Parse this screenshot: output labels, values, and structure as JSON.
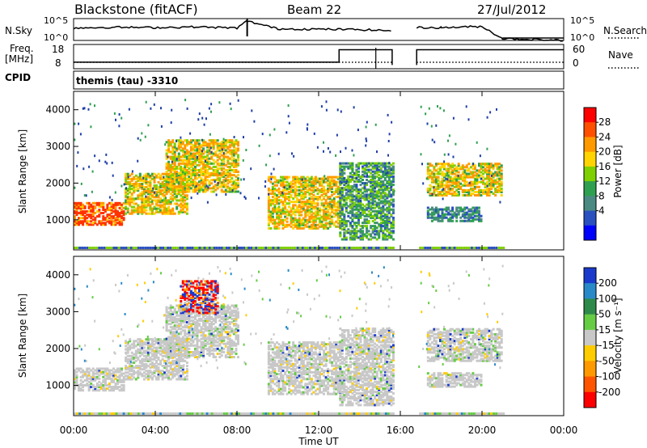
{
  "header": {
    "station": "Blackstone (fitACF)",
    "beam": "Beam 22",
    "date": "27/Jul/2012"
  },
  "noise_panel": {
    "left_label": "N.Sky",
    "right_label": "N.Search",
    "left_ticks": [
      "10^5",
      "10^0"
    ],
    "right_ticks": [
      "10^5",
      "10^0"
    ]
  },
  "freq_panel": {
    "left_label_top": "Freq.",
    "left_label_bottom": "[MHz]",
    "right_label": "Nave",
    "left_ticks": [
      "18",
      "8"
    ],
    "right_ticks": [
      "60",
      "0"
    ]
  },
  "cpid": {
    "label": "CPID",
    "value": "themis (tau) -3310"
  },
  "axes": {
    "xlabel": "Time UT",
    "ylabel": "Slant Range [km]",
    "x_ticks": [
      "00:00",
      "04:00",
      "08:00",
      "12:00",
      "16:00",
      "20:00",
      "00:00"
    ],
    "y_ticks": [
      "1000",
      "2000",
      "3000",
      "4000"
    ]
  },
  "power_scale": {
    "title": "Power [dB]",
    "ticks": [
      "28",
      "24",
      "20",
      "16",
      "12",
      "8",
      "4"
    ],
    "colors": [
      "#ff0000",
      "#ff5000",
      "#ff9900",
      "#ffd400",
      "#7fd000",
      "#2fa050",
      "#4a8a82",
      "#2a50c0",
      "#0000ff"
    ]
  },
  "velocity_scale": {
    "title": "Velocity [m s⁻¹]",
    "ticks": [
      "200",
      "100",
      "50",
      "15",
      "-15",
      "-50",
      "-100",
      "-200"
    ],
    "colors": [
      "#1a3acc",
      "#2a8ac8",
      "#2e8a4a",
      "#66cc44",
      "#c8c8c8",
      "#ffcc00",
      "#ff9900",
      "#ff5500",
      "#ff0000"
    ]
  },
  "chart_data": [
    {
      "type": "heatmap",
      "title": "Blackstone (fitACF)",
      "xlabel": "Time UT",
      "ylabel": "Slant Range [km]",
      "xlim": [
        0,
        24
      ],
      "ylim": [
        180,
        4500
      ],
      "colorbar": "Power [dB]",
      "regions": [
        {
          "t": [
            0.0,
            2.5
          ],
          "r": [
            900,
            1500
          ],
          "value": 26
        },
        {
          "t": [
            2.5,
            5.5
          ],
          "r": [
            1200,
            2300
          ],
          "value": 20
        },
        {
          "t": [
            4.5,
            8.0
          ],
          "r": [
            1800,
            3200
          ],
          "value": 18
        },
        {
          "t": [
            9.5,
            13.0
          ],
          "r": [
            800,
            2200
          ],
          "value": 20
        },
        {
          "t": [
            13.0,
            15.6
          ],
          "r": [
            500,
            2600
          ],
          "value": 14
        },
        {
          "t": [
            17.3,
            21.0
          ],
          "r": [
            1700,
            2600
          ],
          "value": 18
        },
        {
          "t": [
            17.3,
            20.0
          ],
          "r": [
            1000,
            1400
          ],
          "value": 12
        }
      ],
      "gap": [
        15.7,
        16.8
      ]
    },
    {
      "type": "heatmap",
      "title": "",
      "xlabel": "Time UT",
      "ylabel": "Slant Range [km]",
      "xlim": [
        0,
        24
      ],
      "ylim": [
        180,
        4500
      ],
      "colorbar": "Velocity [m s⁻¹]",
      "regions": [
        {
          "t": [
            0.0,
            2.5
          ],
          "r": [
            900,
            1500
          ],
          "value": 0
        },
        {
          "t": [
            2.5,
            5.5
          ],
          "r": [
            1200,
            2300
          ],
          "value": 0
        },
        {
          "t": [
            4.5,
            8.0
          ],
          "r": [
            1800,
            3200
          ],
          "value": 0
        },
        {
          "t": [
            5.2,
            7.0
          ],
          "r": [
            3000,
            3900
          ],
          "value": -100
        },
        {
          "t": [
            9.5,
            13.0
          ],
          "r": [
            800,
            2200
          ],
          "value": 0
        },
        {
          "t": [
            13.0,
            15.6
          ],
          "r": [
            500,
            2600
          ],
          "value": 0
        },
        {
          "t": [
            17.3,
            21.0
          ],
          "r": [
            1700,
            2600
          ],
          "value": 0
        },
        {
          "t": [
            17.3,
            20.0
          ],
          "r": [
            1000,
            1400
          ],
          "value": 0
        }
      ],
      "gap": [
        15.7,
        16.8
      ]
    },
    {
      "type": "line",
      "title": "",
      "series": [
        {
          "name": "N.Sky",
          "x": [
            0,
            2,
            4,
            6,
            8,
            8.5,
            10,
            12,
            14,
            15.6,
            16.8,
            18,
            20,
            21,
            24
          ],
          "y": [
            3.2,
            3.4,
            3.3,
            3.5,
            3.2,
            5.0,
            3.0,
            2.9,
            2.8,
            2.5,
            3.3,
            3.3,
            3.6,
            0.5,
            0.0
          ]
        }
      ]
    },
    {
      "type": "line",
      "title": "",
      "series": [
        {
          "name": "",
          "x": [
            0,
            13,
            13.01,
            15.6,
            16.8,
            24
          ],
          "y": [
            9.5,
            9.5,
            16.2,
            16.2,
            16.2,
            16.2
          ]
        }
      ]
    }
  ]
}
